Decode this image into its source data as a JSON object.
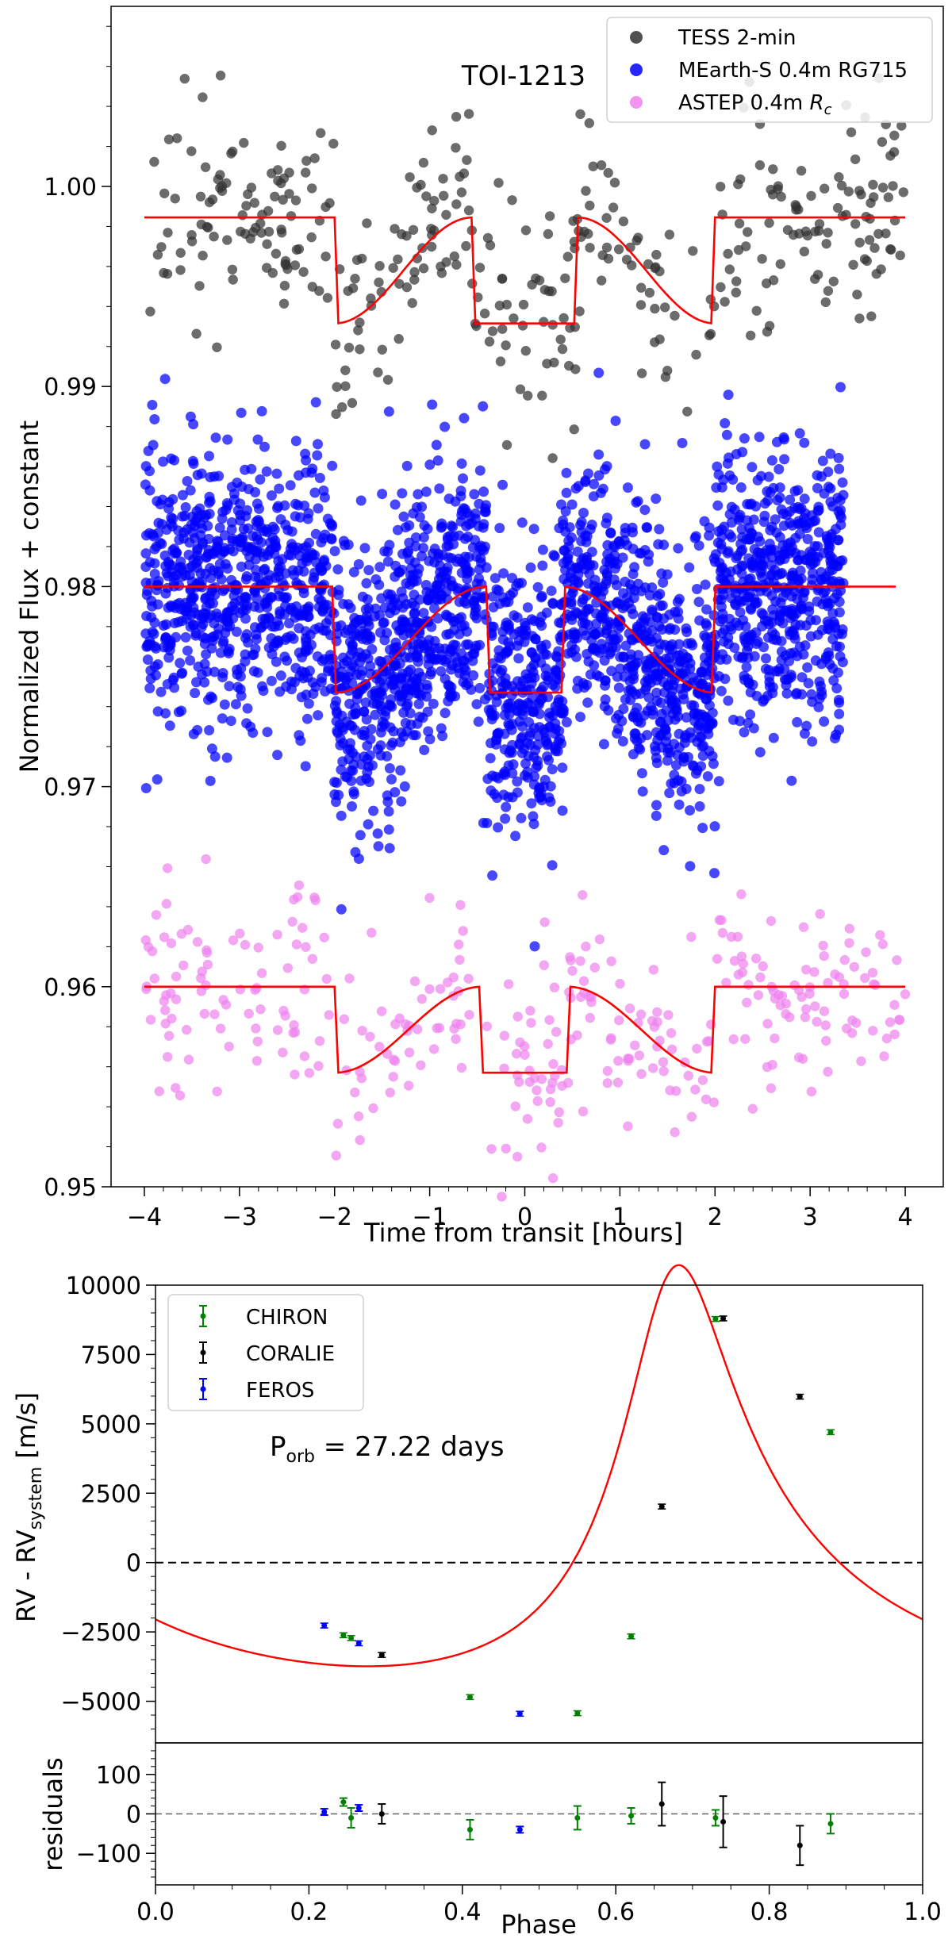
{
  "chart_data": [
    {
      "type": "scatter",
      "panel": "transit-photometry",
      "annotation": "TOI-1213",
      "xlabel": "Time from transit [hours]",
      "ylabel": "Normalized Flux + constant",
      "xlim": [
        -4.35,
        4.4
      ],
      "ylim": [
        0.95,
        1.009
      ],
      "xticks": [
        -4,
        -3,
        -2,
        -1,
        0,
        1,
        2,
        3,
        4
      ],
      "xtick_labels": [
        "−4",
        "−3",
        "−2",
        "−1",
        "0",
        "1",
        "2",
        "3",
        "4"
      ],
      "yticks": [
        0.96,
        0.97,
        0.98,
        0.99,
        1.0
      ],
      "ytick_labels": [
        "0.96",
        "0.97",
        "0.98",
        "0.99",
        "1.00"
      ],
      "ytick_extra": [
        0.95
      ],
      "ytick_extra_labels": [
        "0.95"
      ],
      "legend": {
        "placement": "top-right",
        "entries": [
          "TESS 2-min",
          "MEarth-S 0.4m RG715",
          "ASTEP 0.4m Rc"
        ]
      },
      "series": [
        {
          "name": "TESS 2-min",
          "color": "#333333",
          "baseline": 0.99845,
          "depth": 0.0053,
          "t_total": 4.0,
          "t_flat": 1.1,
          "noise": 0.0026,
          "x_range": [
            -4.0,
            4.0
          ],
          "n_points": 380,
          "model_x_range": [
            -4.0,
            4.0
          ]
        },
        {
          "name": "MEarth-S 0.4m RG715",
          "color": "#0000ff",
          "baseline": 0.98,
          "depth": 0.0053,
          "t_total": 4.0,
          "t_flat": 0.8,
          "noise": 0.0034,
          "x_range": [
            -4.0,
            3.35
          ],
          "n_points": 2800,
          "model_x_range": [
            -4.0,
            3.9
          ]
        },
        {
          "name": "ASTEP 0.4m Rc",
          "color": "#ee82ee",
          "baseline": 0.96,
          "depth": 0.0043,
          "t_total": 4.0,
          "t_flat": 0.9,
          "noise": 0.0024,
          "x_range": [
            -4.0,
            4.0
          ],
          "n_points": 340,
          "model_x_range": [
            -4.0,
            4.0
          ]
        }
      ],
      "model_color": "#ff0000"
    },
    {
      "type": "scatter",
      "panel": "radial-velocity",
      "annotation_main": "P",
      "annotation_sub": "orb",
      "annotation_rest": " = 27.22 days",
      "ylabel_main": "RV - RV",
      "ylabel_sub": "system",
      "ylabel_unit": " [m/s]",
      "xlim": [
        0.0,
        1.0
      ],
      "ylim": [
        -6500,
        10000
      ],
      "yticks": [
        -5000,
        -2500,
        0,
        2500,
        5000,
        7500,
        10000
      ],
      "ytick_labels": [
        "−5000",
        "−2500",
        "0",
        "2500",
        "5000",
        "7500",
        "10000"
      ],
      "legend": {
        "placement": "top-left",
        "entries": [
          "CHIRON",
          "CORALIE",
          "FEROS"
        ]
      },
      "model": {
        "K": 7230,
        "e": 0.5,
        "omega_deg": 345,
        "phase_peri": 0.67,
        "gamma": 0
      },
      "model_color": "#ff0000",
      "series": [
        {
          "name": "CHIRON",
          "color": "#008000",
          "points": [
            [
              0.245,
              -2620
            ],
            [
              0.255,
              -2720
            ],
            [
              0.41,
              -4850
            ],
            [
              0.55,
              -5430
            ],
            [
              0.62,
              -2660
            ],
            [
              0.73,
              8780
            ],
            [
              0.88,
              4700
            ]
          ]
        },
        {
          "name": "CORALIE",
          "color": "#000000",
          "points": [
            [
              0.295,
              -3330
            ],
            [
              0.66,
              2020
            ],
            [
              0.74,
              8800
            ],
            [
              0.84,
              5980
            ]
          ]
        },
        {
          "name": "FEROS",
          "color": "#0000ff",
          "points": [
            [
              0.22,
              -2270
            ],
            [
              0.265,
              -2910
            ],
            [
              0.475,
              -5450
            ]
          ]
        }
      ]
    },
    {
      "type": "scatter",
      "panel": "rv-residuals",
      "xlabel": "Phase",
      "ylabel": "residuals",
      "xlim": [
        0.0,
        1.0
      ],
      "ylim": [
        -180,
        180
      ],
      "xticks": [
        0.0,
        0.2,
        0.4,
        0.6,
        0.8,
        1.0
      ],
      "xtick_labels": [
        "0.0",
        "0.2",
        "0.4",
        "0.6",
        "0.8",
        "1.0"
      ],
      "yticks": [
        -100,
        0,
        100
      ],
      "ytick_labels": [
        "−100",
        "0",
        "100"
      ],
      "series": [
        {
          "name": "CHIRON",
          "color": "#008000",
          "points": [
            [
              0.245,
              30,
              10
            ],
            [
              0.255,
              -10,
              25
            ],
            [
              0.41,
              -40,
              25
            ],
            [
              0.55,
              -10,
              30
            ],
            [
              0.62,
              -5,
              20
            ],
            [
              0.73,
              -10,
              20
            ],
            [
              0.88,
              -25,
              25
            ]
          ]
        },
        {
          "name": "CORALIE",
          "color": "#000000",
          "points": [
            [
              0.295,
              0,
              25
            ],
            [
              0.66,
              25,
              55
            ],
            [
              0.74,
              -20,
              65
            ],
            [
              0.84,
              -80,
              50
            ]
          ]
        },
        {
          "name": "FEROS",
          "color": "#0000ff",
          "points": [
            [
              0.22,
              5,
              8
            ],
            [
              0.265,
              15,
              8
            ],
            [
              0.475,
              -40,
              8
            ]
          ]
        }
      ]
    }
  ]
}
